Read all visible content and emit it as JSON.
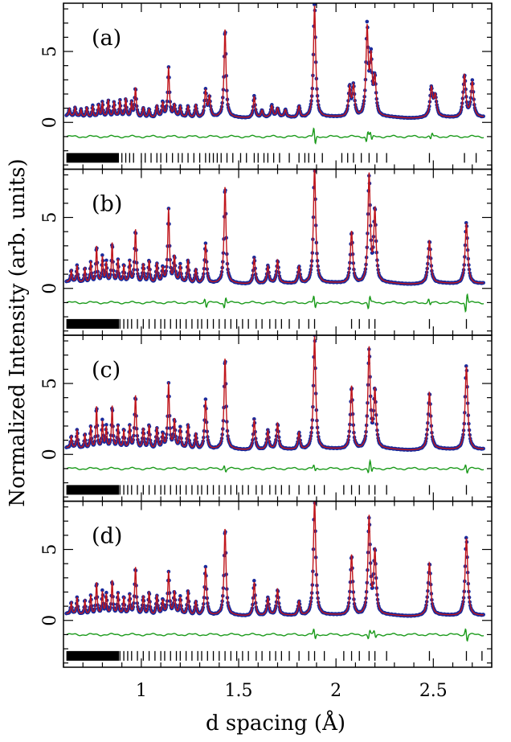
{
  "chart_data": {
    "type": "scatter",
    "figure": "Rietveld refinement fits of powder diffraction patterns (4 stacked panels)",
    "xlabel": "d spacing (Å)",
    "ylabel": "Normalized Intensity (arb. units)",
    "xlim": [
      0.6,
      2.8
    ],
    "xticks": [
      1,
      1.5,
      2,
      2.5
    ],
    "xtick_labels": [
      "1",
      "1.5",
      "2",
      "2.5"
    ],
    "ylim": [
      -3.3,
      8.4
    ],
    "yticks": [
      0,
      5
    ],
    "ytick_labels": [
      "0",
      "5"
    ],
    "colors": {
      "observed": "#1a2a9c",
      "calculated": "#c0161c",
      "difference": "#1a9a1a",
      "reflections": "#000000"
    },
    "series_names": [
      "observed (points)",
      "calculated (line)",
      "difference",
      "Bragg reflection positions"
    ],
    "difference_offset": -1.0,
    "tick_row_y": -2.5,
    "panels": [
      {
        "label": "(a)",
        "peaks": [
          {
            "d": 0.63,
            "h": 0.5,
            "w": 0.004
          },
          {
            "d": 0.66,
            "h": 0.6,
            "w": 0.004
          },
          {
            "d": 0.69,
            "h": 0.5,
            "w": 0.004
          },
          {
            "d": 0.72,
            "h": 0.7,
            "w": 0.004
          },
          {
            "d": 0.75,
            "h": 0.8,
            "w": 0.004
          },
          {
            "d": 0.78,
            "h": 0.9,
            "w": 0.004
          },
          {
            "d": 0.8,
            "h": 1.0,
            "w": 0.004
          },
          {
            "d": 0.83,
            "h": 1.2,
            "w": 0.004
          },
          {
            "d": 0.86,
            "h": 1.0,
            "w": 0.004
          },
          {
            "d": 0.89,
            "h": 1.1,
            "w": 0.004
          },
          {
            "d": 0.92,
            "h": 1.3,
            "w": 0.004
          },
          {
            "d": 0.95,
            "h": 1.0,
            "w": 0.004
          },
          {
            "d": 0.97,
            "h": 2.1,
            "w": 0.005
          },
          {
            "d": 1.01,
            "h": 0.7,
            "w": 0.005
          },
          {
            "d": 1.04,
            "h": 0.6,
            "w": 0.005
          },
          {
            "d": 1.08,
            "h": 0.8,
            "w": 0.005
          },
          {
            "d": 1.11,
            "h": 1.0,
            "w": 0.005
          },
          {
            "d": 1.14,
            "h": 3.5,
            "w": 0.005
          },
          {
            "d": 1.17,
            "h": 0.8,
            "w": 0.005
          },
          {
            "d": 1.2,
            "h": 0.7,
            "w": 0.005
          },
          {
            "d": 1.24,
            "h": 0.8,
            "w": 0.005
          },
          {
            "d": 1.28,
            "h": 0.9,
            "w": 0.005
          },
          {
            "d": 1.33,
            "h": 1.9,
            "w": 0.006
          },
          {
            "d": 1.35,
            "h": 1.4,
            "w": 0.006
          },
          {
            "d": 1.43,
            "h": 6.2,
            "w": 0.006
          },
          {
            "d": 1.58,
            "h": 1.5,
            "w": 0.006
          },
          {
            "d": 1.62,
            "h": 0.5,
            "w": 0.006
          },
          {
            "d": 1.67,
            "h": 0.8,
            "w": 0.006
          },
          {
            "d": 1.7,
            "h": 0.6,
            "w": 0.006
          },
          {
            "d": 1.74,
            "h": 0.5,
            "w": 0.006
          },
          {
            "d": 1.81,
            "h": 0.8,
            "w": 0.006
          },
          {
            "d": 1.89,
            "h": 7.9,
            "w": 0.007
          },
          {
            "d": 2.07,
            "h": 2.0,
            "w": 0.007
          },
          {
            "d": 2.09,
            "h": 2.1,
            "w": 0.007
          },
          {
            "d": 2.16,
            "h": 6.1,
            "w": 0.007
          },
          {
            "d": 2.18,
            "h": 3.8,
            "w": 0.007
          },
          {
            "d": 2.2,
            "h": 2.5,
            "w": 0.007
          },
          {
            "d": 2.49,
            "h": 2.0,
            "w": 0.008
          },
          {
            "d": 2.51,
            "h": 1.4,
            "w": 0.008
          },
          {
            "d": 2.66,
            "h": 3.0,
            "w": 0.008
          },
          {
            "d": 2.7,
            "h": 2.5,
            "w": 0.008
          }
        ],
        "reflections": [
          0.9,
          0.92,
          0.94,
          0.96,
          1.0,
          1.02,
          1.05,
          1.08,
          1.1,
          1.13,
          1.16,
          1.19,
          1.21,
          1.24,
          1.27,
          1.3,
          1.33,
          1.35,
          1.37,
          1.39,
          1.41,
          1.44,
          1.47,
          1.51,
          1.54,
          1.58,
          1.6,
          1.63,
          1.65,
          1.68,
          1.71,
          1.76,
          1.81,
          1.84,
          1.86,
          1.89,
          1.93,
          2.03,
          2.06,
          2.09,
          2.13,
          2.17,
          2.21,
          2.26,
          2.48,
          2.66,
          2.72
        ],
        "diff_features": [
          {
            "d": 1.89,
            "a": -0.8
          },
          {
            "d": 2.16,
            "a": 0.5
          },
          {
            "d": 2.18,
            "a": -0.4
          },
          {
            "d": 2.49,
            "a": 0.3
          }
        ]
      },
      {
        "label": "(b)",
        "peaks": [
          {
            "d": 0.64,
            "h": 0.8,
            "w": 0.004
          },
          {
            "d": 0.67,
            "h": 1.2,
            "w": 0.004
          },
          {
            "d": 0.71,
            "h": 1.0,
            "w": 0.004
          },
          {
            "d": 0.74,
            "h": 1.5,
            "w": 0.004
          },
          {
            "d": 0.77,
            "h": 2.6,
            "w": 0.004
          },
          {
            "d": 0.8,
            "h": 1.8,
            "w": 0.004
          },
          {
            "d": 0.82,
            "h": 1.4,
            "w": 0.004
          },
          {
            "d": 0.85,
            "h": 2.8,
            "w": 0.004
          },
          {
            "d": 0.88,
            "h": 1.6,
            "w": 0.004
          },
          {
            "d": 0.91,
            "h": 1.2,
            "w": 0.004
          },
          {
            "d": 0.94,
            "h": 1.5,
            "w": 0.004
          },
          {
            "d": 0.97,
            "h": 3.8,
            "w": 0.005
          },
          {
            "d": 1.01,
            "h": 1.3,
            "w": 0.005
          },
          {
            "d": 1.04,
            "h": 1.6,
            "w": 0.005
          },
          {
            "d": 1.08,
            "h": 1.4,
            "w": 0.005
          },
          {
            "d": 1.11,
            "h": 1.0,
            "w": 0.005
          },
          {
            "d": 1.14,
            "h": 5.2,
            "w": 0.005
          },
          {
            "d": 1.17,
            "h": 1.8,
            "w": 0.005
          },
          {
            "d": 1.2,
            "h": 1.2,
            "w": 0.005
          },
          {
            "d": 1.24,
            "h": 1.6,
            "w": 0.005
          },
          {
            "d": 1.28,
            "h": 1.0,
            "w": 0.005
          },
          {
            "d": 1.33,
            "h": 2.8,
            "w": 0.006
          },
          {
            "d": 1.43,
            "h": 6.8,
            "w": 0.006
          },
          {
            "d": 1.58,
            "h": 1.8,
            "w": 0.006
          },
          {
            "d": 1.65,
            "h": 1.2,
            "w": 0.006
          },
          {
            "d": 1.7,
            "h": 1.6,
            "w": 0.006
          },
          {
            "d": 1.81,
            "h": 1.2,
            "w": 0.006
          },
          {
            "d": 1.89,
            "h": 8.3,
            "w": 0.007
          },
          {
            "d": 2.08,
            "h": 3.7,
            "w": 0.007
          },
          {
            "d": 2.17,
            "h": 7.6,
            "w": 0.007
          },
          {
            "d": 2.2,
            "h": 5.0,
            "w": 0.007
          },
          {
            "d": 2.48,
            "h": 3.0,
            "w": 0.008
          },
          {
            "d": 2.67,
            "h": 4.3,
            "w": 0.008
          }
        ],
        "reflections": [
          0.89,
          0.91,
          0.93,
          0.95,
          0.98,
          1.01,
          1.04,
          1.07,
          1.1,
          1.12,
          1.15,
          1.18,
          1.2,
          1.23,
          1.26,
          1.29,
          1.31,
          1.34,
          1.37,
          1.4,
          1.43,
          1.46,
          1.49,
          1.52,
          1.55,
          1.59,
          1.62,
          1.66,
          1.69,
          1.72,
          1.76,
          1.81,
          1.86,
          1.89,
          2.08,
          2.12,
          2.17,
          2.2,
          2.48,
          2.67
        ],
        "diff_features": [
          {
            "d": 1.33,
            "a": -0.4
          },
          {
            "d": 1.43,
            "a": 0.5
          },
          {
            "d": 1.89,
            "a": -0.6
          },
          {
            "d": 2.17,
            "a": 0.6
          },
          {
            "d": 2.48,
            "a": -0.3
          },
          {
            "d": 2.67,
            "a": 0.9
          }
        ]
      },
      {
        "label": "(c)",
        "peaks": [
          {
            "d": 0.64,
            "h": 0.8,
            "w": 0.004
          },
          {
            "d": 0.67,
            "h": 1.3,
            "w": 0.004
          },
          {
            "d": 0.71,
            "h": 1.0,
            "w": 0.004
          },
          {
            "d": 0.74,
            "h": 1.6,
            "w": 0.004
          },
          {
            "d": 0.77,
            "h": 3.0,
            "w": 0.004
          },
          {
            "d": 0.8,
            "h": 1.9,
            "w": 0.004
          },
          {
            "d": 0.82,
            "h": 1.5,
            "w": 0.004
          },
          {
            "d": 0.85,
            "h": 3.0,
            "w": 0.004
          },
          {
            "d": 0.88,
            "h": 1.6,
            "w": 0.004
          },
          {
            "d": 0.91,
            "h": 1.3,
            "w": 0.004
          },
          {
            "d": 0.94,
            "h": 1.6,
            "w": 0.004
          },
          {
            "d": 0.97,
            "h": 3.8,
            "w": 0.005
          },
          {
            "d": 1.01,
            "h": 1.4,
            "w": 0.005
          },
          {
            "d": 1.04,
            "h": 1.7,
            "w": 0.005
          },
          {
            "d": 1.08,
            "h": 1.5,
            "w": 0.005
          },
          {
            "d": 1.11,
            "h": 1.0,
            "w": 0.005
          },
          {
            "d": 1.14,
            "h": 4.6,
            "w": 0.005
          },
          {
            "d": 1.17,
            "h": 2.0,
            "w": 0.005
          },
          {
            "d": 1.2,
            "h": 1.4,
            "w": 0.005
          },
          {
            "d": 1.24,
            "h": 1.7,
            "w": 0.005
          },
          {
            "d": 1.28,
            "h": 1.1,
            "w": 0.005
          },
          {
            "d": 1.33,
            "h": 3.5,
            "w": 0.006
          },
          {
            "d": 1.43,
            "h": 6.4,
            "w": 0.006
          },
          {
            "d": 1.58,
            "h": 2.1,
            "w": 0.006
          },
          {
            "d": 1.65,
            "h": 1.3,
            "w": 0.006
          },
          {
            "d": 1.7,
            "h": 1.8,
            "w": 0.006
          },
          {
            "d": 1.81,
            "h": 1.2,
            "w": 0.006
          },
          {
            "d": 1.89,
            "h": 8.0,
            "w": 0.007
          },
          {
            "d": 2.08,
            "h": 4.5,
            "w": 0.007
          },
          {
            "d": 2.17,
            "h": 7.1,
            "w": 0.007
          },
          {
            "d": 2.2,
            "h": 4.0,
            "w": 0.007
          },
          {
            "d": 2.48,
            "h": 4.0,
            "w": 0.008
          },
          {
            "d": 2.67,
            "h": 5.9,
            "w": 0.008
          }
        ],
        "reflections": [
          0.89,
          0.91,
          0.93,
          0.95,
          0.98,
          1.01,
          1.04,
          1.07,
          1.1,
          1.12,
          1.15,
          1.18,
          1.2,
          1.23,
          1.26,
          1.29,
          1.31,
          1.34,
          1.37,
          1.4,
          1.43,
          1.46,
          1.49,
          1.52,
          1.55,
          1.59,
          1.62,
          1.66,
          1.69,
          1.72,
          1.76,
          1.81,
          1.86,
          1.89,
          1.94,
          2.04,
          2.08,
          2.12,
          2.17,
          2.2,
          2.26,
          2.48,
          2.67
        ],
        "diff_features": [
          {
            "d": 1.43,
            "a": -0.3
          },
          {
            "d": 1.89,
            "a": -0.3
          },
          {
            "d": 2.17,
            "a": 0.4
          },
          {
            "d": 2.18,
            "a": -0.4
          },
          {
            "d": 2.67,
            "a": -0.4
          }
        ]
      },
      {
        "label": "(d)",
        "peaks": [
          {
            "d": 0.64,
            "h": 0.8,
            "w": 0.004
          },
          {
            "d": 0.67,
            "h": 1.2,
            "w": 0.004
          },
          {
            "d": 0.71,
            "h": 1.0,
            "w": 0.004
          },
          {
            "d": 0.74,
            "h": 1.4,
            "w": 0.004
          },
          {
            "d": 0.77,
            "h": 2.3,
            "w": 0.004
          },
          {
            "d": 0.8,
            "h": 1.6,
            "w": 0.004
          },
          {
            "d": 0.82,
            "h": 1.4,
            "w": 0.004
          },
          {
            "d": 0.85,
            "h": 2.4,
            "w": 0.004
          },
          {
            "d": 0.88,
            "h": 1.5,
            "w": 0.004
          },
          {
            "d": 0.91,
            "h": 1.2,
            "w": 0.004
          },
          {
            "d": 0.94,
            "h": 1.4,
            "w": 0.004
          },
          {
            "d": 0.97,
            "h": 3.4,
            "w": 0.005
          },
          {
            "d": 1.01,
            "h": 1.3,
            "w": 0.005
          },
          {
            "d": 1.04,
            "h": 1.6,
            "w": 0.005
          },
          {
            "d": 1.08,
            "h": 1.4,
            "w": 0.005
          },
          {
            "d": 1.11,
            "h": 1.0,
            "w": 0.005
          },
          {
            "d": 1.14,
            "h": 3.0,
            "w": 0.005
          },
          {
            "d": 1.17,
            "h": 1.6,
            "w": 0.005
          },
          {
            "d": 1.2,
            "h": 1.2,
            "w": 0.005
          },
          {
            "d": 1.24,
            "h": 1.7,
            "w": 0.005
          },
          {
            "d": 1.28,
            "h": 1.0,
            "w": 0.005
          },
          {
            "d": 1.33,
            "h": 3.4,
            "w": 0.006
          },
          {
            "d": 1.43,
            "h": 6.1,
            "w": 0.006
          },
          {
            "d": 1.58,
            "h": 2.4,
            "w": 0.006
          },
          {
            "d": 1.65,
            "h": 1.2,
            "w": 0.006
          },
          {
            "d": 1.7,
            "h": 1.8,
            "w": 0.006
          },
          {
            "d": 1.81,
            "h": 1.0,
            "w": 0.006
          },
          {
            "d": 1.89,
            "h": 8.3,
            "w": 0.007
          },
          {
            "d": 2.08,
            "h": 4.3,
            "w": 0.007
          },
          {
            "d": 2.17,
            "h": 6.9,
            "w": 0.007
          },
          {
            "d": 2.2,
            "h": 4.4,
            "w": 0.007
          },
          {
            "d": 2.48,
            "h": 3.7,
            "w": 0.008
          },
          {
            "d": 2.67,
            "h": 5.5,
            "w": 0.008
          }
        ],
        "reflections": [
          0.89,
          0.91,
          0.93,
          0.95,
          0.98,
          1.01,
          1.04,
          1.07,
          1.1,
          1.12,
          1.15,
          1.18,
          1.2,
          1.23,
          1.26,
          1.29,
          1.31,
          1.34,
          1.37,
          1.4,
          1.43,
          1.46,
          1.49,
          1.52,
          1.55,
          1.59,
          1.62,
          1.66,
          1.69,
          1.72,
          1.76,
          1.81,
          1.86,
          1.89,
          1.94,
          2.04,
          2.08,
          2.12,
          2.17,
          2.2,
          2.26,
          2.48,
          2.67,
          2.75
        ],
        "diff_features": [
          {
            "d": 1.89,
            "a": -0.5
          },
          {
            "d": 2.17,
            "a": 0.4
          },
          {
            "d": 2.2,
            "a": -0.3
          },
          {
            "d": 2.67,
            "a": -0.6
          }
        ]
      }
    ]
  }
}
